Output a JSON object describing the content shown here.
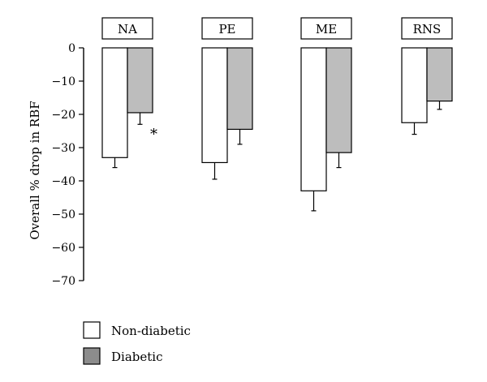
{
  "chart_data": {
    "type": "bar",
    "categories": [
      "NA",
      "PE",
      "ME",
      "RNS"
    ],
    "series": [
      {
        "name": "Non-diabetic",
        "color": "#ffffff",
        "values": [
          -33,
          -34.5,
          -43,
          -22.5
        ],
        "error": [
          3,
          5,
          6,
          3.5
        ]
      },
      {
        "name": "Diabetic",
        "color": "#bdbdbd",
        "values": [
          -19.5,
          -24.5,
          -31.5,
          -16
        ],
        "error": [
          3.5,
          4.5,
          4.5,
          2.5
        ]
      }
    ],
    "ylabel": "Overall % drop in RBF",
    "ylim": [
      -70,
      0
    ],
    "yticks": [
      0,
      -10,
      -20,
      -30,
      -40,
      -50,
      -60,
      -70
    ],
    "ytick_labels": [
      "0",
      "−10",
      "−20",
      "−30",
      "−40",
      "−50",
      "−60",
      "−70"
    ],
    "annotations": [
      {
        "text": "*",
        "category": "NA",
        "series": "Diabetic"
      }
    ],
    "legend_position": "bottom-left",
    "grid": false
  }
}
